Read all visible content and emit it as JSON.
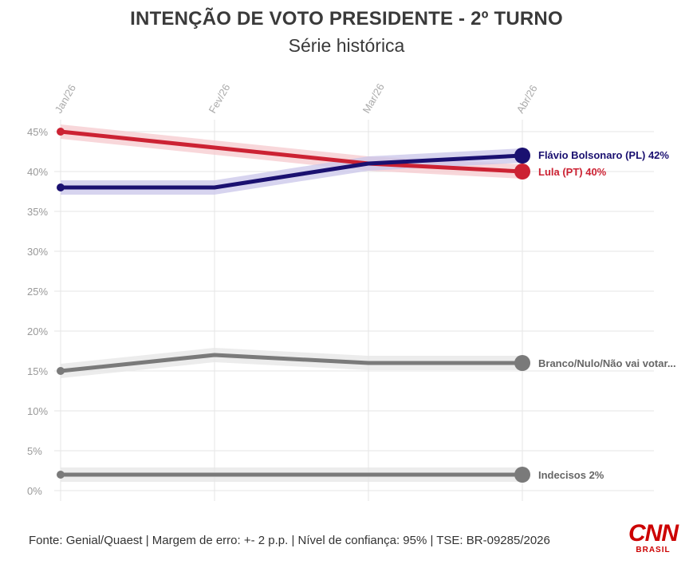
{
  "header": {
    "title": "INTENÇÃO DE VOTO PRESIDENTE - 2º TURNO",
    "subtitle": "Série histórica"
  },
  "footer": {
    "source": "Fonte: Genial/Quaest | Margem de erro: +- 2 p.p. | Nível de confiança: 95% | TSE: BR-09285/2026"
  },
  "logo": {
    "text": "CNN",
    "subtext": "BRASIL",
    "color": "#cc0000"
  },
  "chart_data": {
    "type": "line",
    "categories": [
      "Jan/26",
      "Fev/26",
      "Mar/26",
      "Abr/26"
    ],
    "ylim": [
      0,
      45
    ],
    "yticks": [
      0,
      5,
      10,
      15,
      20,
      25,
      30,
      35,
      40,
      45
    ],
    "ytick_labels": [
      "0%",
      "5%",
      "10%",
      "15%",
      "20%",
      "25%",
      "30%",
      "35%",
      "40%",
      "45%"
    ],
    "grid": true,
    "margin_of_error": 2,
    "series": [
      {
        "name": "Flávio Bolsonaro (PL)",
        "label": "Flávio Bolsonaro (PL) 42%",
        "values": [
          38,
          38,
          41,
          42
        ],
        "color": "#1a1070",
        "band_color": "#c9c5ea",
        "bold_label": true
      },
      {
        "name": "Lula (PT)",
        "label": "Lula (PT) 40%",
        "values": [
          45,
          43,
          41,
          40
        ],
        "color": "#cc2233",
        "band_color": "#f6c9cd",
        "bold_label": true
      },
      {
        "name": "Branco/Nulo/Não vai votar",
        "label": "Branco/Nulo/Não vai votar...",
        "values": [
          15,
          17,
          16,
          16
        ],
        "color": "#7a7a7a",
        "band_color": "#e6e6e6",
        "bold_label": false
      },
      {
        "name": "Indecisos",
        "label": "Indecisos 2%",
        "values": [
          2,
          2,
          2,
          2
        ],
        "color": "#7a7a7a",
        "band_color": "#e6e6e6",
        "bold_label": false
      }
    ]
  }
}
